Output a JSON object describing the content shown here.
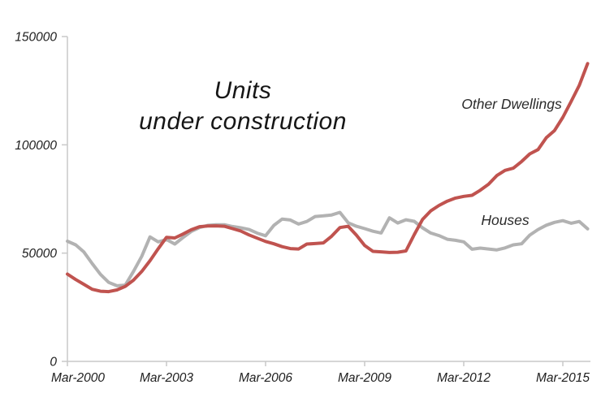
{
  "colors": {
    "background": "#ffffff",
    "axis": "#c9c9c9",
    "text": "#1e1e1e",
    "houses_line": "#b2b2b2",
    "other_dwellings_line": "#c0534f"
  },
  "chart_data": {
    "type": "line",
    "title_lines": [
      "Units",
      "under construction"
    ],
    "grid": false,
    "legend": "inline-annotations",
    "x_axis": {
      "unit": "quarter",
      "tick_labels": [
        "Mar-2000",
        "Mar-2003",
        "Mar-2006",
        "Mar-2009",
        "Mar-2012",
        "Mar-2015"
      ],
      "tick_quarter_indices": [
        0,
        12,
        24,
        36,
        48,
        60
      ]
    },
    "y_axis": {
      "range": [
        0,
        150000
      ],
      "ticks": [
        0,
        50000,
        100000,
        150000
      ],
      "tick_labels": [
        "0",
        "50000",
        "100000",
        "150000"
      ]
    },
    "categories": [
      "Mar-2000",
      "Jun-2000",
      "Sep-2000",
      "Dec-2000",
      "Mar-2001",
      "Jun-2001",
      "Sep-2001",
      "Dec-2001",
      "Mar-2002",
      "Jun-2002",
      "Sep-2002",
      "Dec-2002",
      "Mar-2003",
      "Jun-2003",
      "Sep-2003",
      "Dec-2003",
      "Mar-2004",
      "Jun-2004",
      "Sep-2004",
      "Dec-2004",
      "Mar-2005",
      "Jun-2005",
      "Sep-2005",
      "Dec-2005",
      "Mar-2006",
      "Jun-2006",
      "Sep-2006",
      "Dec-2006",
      "Mar-2007",
      "Jun-2007",
      "Sep-2007",
      "Dec-2007",
      "Mar-2008",
      "Jun-2008",
      "Sep-2008",
      "Dec-2008",
      "Mar-2009",
      "Jun-2009",
      "Sep-2009",
      "Dec-2009",
      "Mar-2010",
      "Jun-2010",
      "Sep-2010",
      "Dec-2010",
      "Mar-2011",
      "Jun-2011",
      "Sep-2011",
      "Dec-2011",
      "Mar-2012",
      "Jun-2012",
      "Sep-2012",
      "Dec-2012",
      "Mar-2013",
      "Jun-2013",
      "Sep-2013",
      "Dec-2013",
      "Mar-2014",
      "Jun-2014",
      "Sep-2014",
      "Dec-2014",
      "Mar-2015",
      "Jun-2015",
      "Sep-2015",
      "Dec-2015"
    ],
    "series": [
      {
        "name": "Houses",
        "color": "#b2b2b2",
        "values": [
          55500,
          53800,
          50500,
          45200,
          40200,
          36500,
          34900,
          35200,
          41500,
          48500,
          57500,
          55200,
          56300,
          54200,
          57200,
          60000,
          61800,
          62800,
          63100,
          63100,
          62300,
          61700,
          60900,
          59200,
          58000,
          62800,
          65700,
          65300,
          63400,
          64600,
          66900,
          67200,
          67600,
          68800,
          64000,
          62400,
          61300,
          60100,
          59300,
          66300,
          63900,
          65400,
          64700,
          61700,
          59300,
          58100,
          56400,
          55900,
          55200,
          51800,
          52300,
          51900,
          51500,
          52400,
          53800,
          54300,
          58300,
          60900,
          62900,
          64200,
          65000,
          63800,
          64600,
          61200
        ]
      },
      {
        "name": "Other Dwellings",
        "color": "#c0534f",
        "values": [
          40300,
          37800,
          35600,
          33300,
          32400,
          32200,
          33000,
          34600,
          37500,
          41500,
          46500,
          52000,
          57300,
          57000,
          58800,
          60800,
          62200,
          62500,
          62600,
          62400,
          61300,
          60200,
          58400,
          56900,
          55400,
          54300,
          53000,
          52100,
          51900,
          54200,
          54400,
          54700,
          57800,
          61800,
          62400,
          58300,
          53500,
          50800,
          50600,
          50300,
          50400,
          51000,
          58500,
          65500,
          69500,
          72000,
          74000,
          75400,
          76200,
          76700,
          79000,
          81800,
          85800,
          88200,
          89200,
          92300,
          95800,
          97800,
          103300,
          106600,
          112700,
          120000,
          127500,
          137500
        ]
      }
    ]
  }
}
